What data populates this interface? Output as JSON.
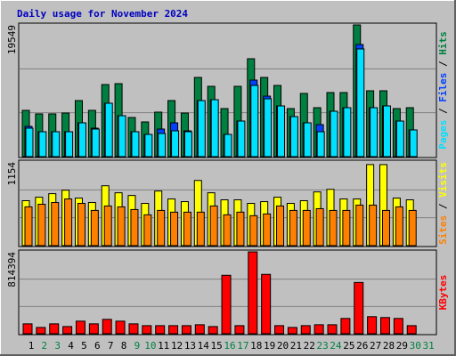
{
  "chart_data": [
    {
      "type": "bar",
      "title": "Daily usage for November 2024",
      "legend_separator": " / ",
      "ylim": [
        0,
        19549
      ],
      "yticks": [
        19549
      ],
      "series": [
        {
          "name": "Hits",
          "color": "#008040",
          "values": [
            6869,
            6341,
            6341,
            6473,
            8322,
            6869,
            10699,
            10832,
            5812,
            5152,
            6605,
            8322,
            6473,
            11756,
            10435,
            7133,
            10435,
            14530,
            11756,
            10567,
            7133,
            9379,
            7265,
            9511,
            9511,
            19549,
            9775,
            9775,
            7133,
            7265,
            null
          ]
        },
        {
          "name": "Files",
          "color": "#0040ff",
          "values": [
            4491,
            3699,
            3699,
            3699,
            5020,
            4227,
            7926,
            6076,
            3699,
            3302,
            4095,
            5020,
            3831,
            8322,
            8454,
            3302,
            5284,
            11360,
            8982,
            7529,
            5944,
            5020,
            4755,
            6737,
            7265,
            16644,
            7265,
            7529,
            5284,
            3963,
            null
          ]
        },
        {
          "name": "Pages",
          "color": "#00e0ff",
          "values": [
            4227,
            3699,
            3699,
            3699,
            5020,
            4095,
            7926,
            6076,
            3699,
            3302,
            3434,
            3831,
            3699,
            8322,
            8454,
            3302,
            5284,
            10567,
            8586,
            7529,
            5944,
            5020,
            3699,
            6737,
            7265,
            15983,
            7265,
            7529,
            5284,
            3963,
            null
          ]
        }
      ]
    },
    {
      "type": "bar",
      "legend_separator": " / ",
      "ylim": [
        0,
        1154
      ],
      "yticks": [
        1154
      ],
      "series": [
        {
          "name": "Visits",
          "color": "#ffff00",
          "values": [
            620,
            668,
            717,
            765,
            656,
            595,
            826,
            729,
            692,
            583,
            753,
            644,
            607,
            899,
            729,
            632,
            632,
            583,
            607,
            668,
            583,
            620,
            741,
            777,
            644,
            644,
            1118,
            1118,
            656,
            632,
            null
          ]
        },
        {
          "name": "Sites",
          "color": "#ff8000",
          "values": [
            535,
            571,
            595,
            644,
            583,
            486,
            547,
            535,
            498,
            425,
            486,
            462,
            462,
            462,
            547,
            425,
            462,
            413,
            437,
            547,
            486,
            486,
            510,
            486,
            486,
            559,
            559,
            486,
            535,
            486,
            null
          ]
        }
      ]
    },
    {
      "type": "bar",
      "ylim": [
        0,
        814394
      ],
      "yticks": [
        814394
      ],
      "categories": [
        "1",
        "2",
        "3",
        "4",
        "5",
        "6",
        "7",
        "8",
        "9",
        "10",
        "11",
        "12",
        "13",
        "14",
        "15",
        "16",
        "17",
        "18",
        "19",
        "20",
        "21",
        "22",
        "23",
        "24",
        "25",
        "26",
        "27",
        "28",
        "29",
        "30",
        "31"
      ],
      "tick_label_colors": [
        "#000000",
        "#008040",
        "#008040",
        "#000000",
        "#000000",
        "#000000",
        "#000000",
        "#000000",
        "#008040",
        "#008040",
        "#000000",
        "#000000",
        "#000000",
        "#000000",
        "#000000",
        "#008040",
        "#008040",
        "#000000",
        "#000000",
        "#000000",
        "#000000",
        "#000000",
        "#008040",
        "#008040",
        "#000000",
        "#000000",
        "#000000",
        "#000000",
        "#000000",
        "#008040",
        "#008040"
      ],
      "series": [
        {
          "name": "KBytes",
          "color": "#ff0000",
          "values": [
            98440,
            62645,
            98440,
            71594,
            125290,
            98440,
            143186,
            125290,
            98440,
            80543,
            80543,
            80543,
            80543,
            89494,
            71594,
            581720,
            80543,
            814394,
            590660,
            80543,
            62645,
            80543,
            89494,
            89494,
            152140,
            510120,
            170040,
            161090,
            152140,
            80543,
            null
          ]
        }
      ]
    }
  ]
}
